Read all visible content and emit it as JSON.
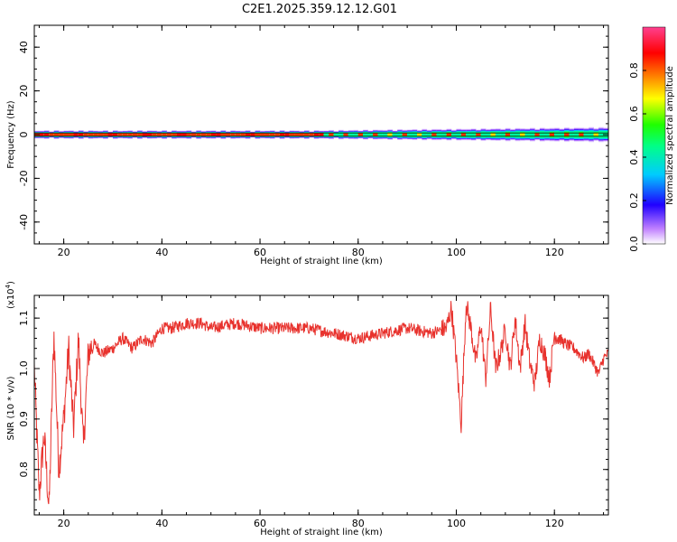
{
  "chart_data": [
    {
      "type": "heatmap",
      "title": "C2E1.2025.359.12.12.G01",
      "xlabel": "Height of straight line (km)",
      "ylabel": "Frequency (Hz)",
      "xlim": [
        14,
        131
      ],
      "ylim": [
        -50,
        50
      ],
      "xticks": [
        "20",
        "40",
        "60",
        "80",
        "100",
        "120"
      ],
      "yticks": [
        "40",
        "20",
        "0",
        "-20",
        "-40"
      ],
      "colorbar": {
        "label": "Normalized spectral amplitude",
        "range": [
          0,
          1
        ],
        "ticks": [
          "0.0",
          "0.2",
          "0.4",
          "0.6",
          "0.8"
        ]
      },
      "band": {
        "center_frequency_hz": 0,
        "x_start_km": 14,
        "x_end_km": 131,
        "note": "narrow spectral band near 0 Hz, widening above ~70 km"
      }
    },
    {
      "type": "line",
      "xlabel": "Height of straight line (km)",
      "ylabel": "SNR (10 * v/v)",
      "ymultiplier": "(x10",
      "ymultiplier_exp": "4",
      "xlim": [
        14,
        131
      ],
      "ylim": [
        0.71,
        1.145
      ],
      "xticks": [
        "20",
        "40",
        "60",
        "80",
        "100",
        "120"
      ],
      "yticks": [
        "1.1",
        "1.0",
        "0.9",
        "0.8"
      ],
      "series": [
        {
          "name": "SNR",
          "color": "#e8322d",
          "x": [
            14,
            15,
            16,
            17,
            18,
            19,
            20,
            21,
            22,
            23,
            24,
            25,
            26,
            28,
            30,
            32,
            34,
            36,
            38,
            40,
            42,
            45,
            48,
            50,
            55,
            60,
            65,
            70,
            75,
            80,
            85,
            90,
            95,
            98,
            99,
            100,
            101,
            102,
            103,
            104,
            105,
            106,
            107,
            108,
            109,
            110,
            111,
            112,
            113,
            114,
            115,
            116,
            117,
            118,
            119,
            120,
            122,
            124,
            126,
            127,
            128,
            129,
            130,
            131
          ],
          "y": [
            1.0,
            0.75,
            0.87,
            0.72,
            1.07,
            0.8,
            0.9,
            1.04,
            0.88,
            1.06,
            0.84,
            1.03,
            1.05,
            1.03,
            1.04,
            1.06,
            1.04,
            1.06,
            1.05,
            1.08,
            1.08,
            1.09,
            1.09,
            1.08,
            1.09,
            1.08,
            1.08,
            1.08,
            1.07,
            1.06,
            1.07,
            1.08,
            1.07,
            1.08,
            1.12,
            1.02,
            0.89,
            1.13,
            1.08,
            1.01,
            1.09,
            0.98,
            1.12,
            1.0,
            1.03,
            1.08,
            1.0,
            1.1,
            1.0,
            1.09,
            1.01,
            0.97,
            1.06,
            1.03,
            0.98,
            1.07,
            1.05,
            1.04,
            1.02,
            1.03,
            1.01,
            0.99,
            1.02,
            1.03
          ]
        }
      ]
    }
  ]
}
